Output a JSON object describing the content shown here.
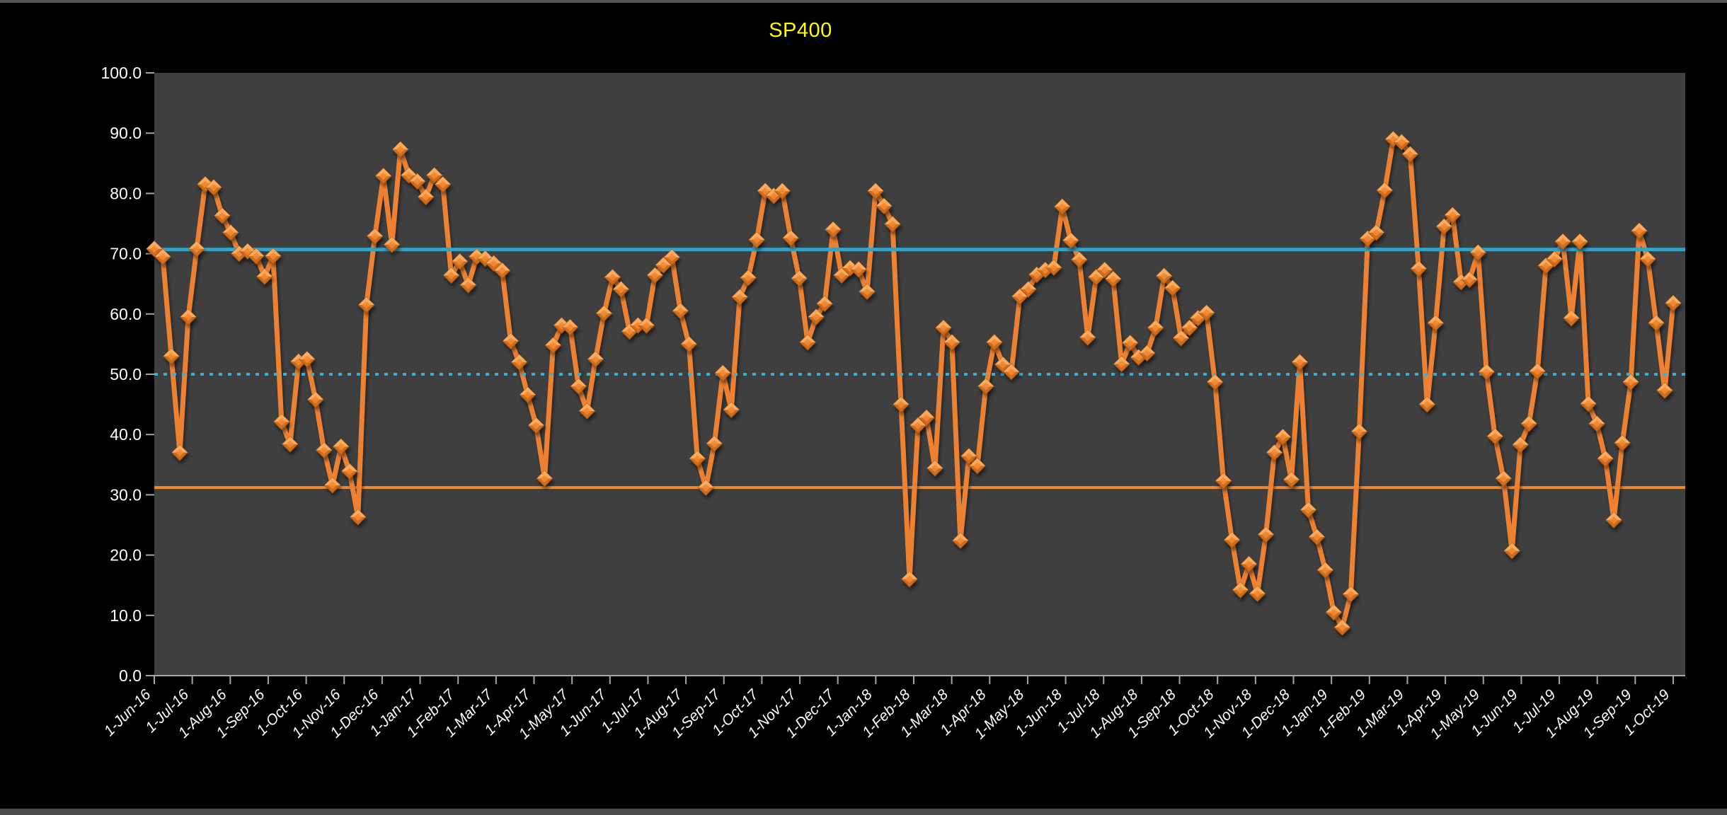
{
  "chart_data": {
    "type": "line",
    "title": "SP400",
    "title_color": "#FFFF00",
    "outer_bg": "#000000",
    "plot_bg": "#3F3F3F",
    "axis_text_color": "#FFFFFF",
    "axis_line_color": "#A6A6A6",
    "grid": "off",
    "legend_position": "none",
    "ylim": [
      0,
      100
    ],
    "y_tick_labels": [
      "0.0",
      "10.0",
      "20.0",
      "30.0",
      "40.0",
      "50.0",
      "60.0",
      "70.0",
      "80.0",
      "90.0",
      "100.0"
    ],
    "x_tick_labels": [
      "1-Jun-16",
      "1-Jul-16",
      "1-Aug-16",
      "1-Sep-16",
      "1-Oct-16",
      "1-Nov-16",
      "1-Dec-16",
      "1-Jan-17",
      "1-Feb-17",
      "1-Mar-17",
      "1-Apr-17",
      "1-May-17",
      "1-Jun-17",
      "1-Jul-17",
      "1-Aug-17",
      "1-Sep-17",
      "1-Oct-17",
      "1-Nov-17",
      "1-Dec-17",
      "1-Jan-18",
      "1-Feb-18",
      "1-Mar-18",
      "1-Apr-18",
      "1-May-18",
      "1-Jun-18",
      "1-Jul-18",
      "1-Aug-18",
      "1-Sep-18",
      "1-Oct-18",
      "1-Nov-18",
      "1-Dec-18",
      "1-Jan-19",
      "1-Feb-19",
      "1-Mar-19",
      "1-Apr-19",
      "1-May-19",
      "1-Jun-19",
      "1-Jul-19",
      "1-Aug-19",
      "1-Sep-19",
      "1-Oct-19"
    ],
    "x_frequency": "weekly",
    "series": [
      {
        "name": "SP400",
        "marker": "diamond",
        "line_color": "#ED8132",
        "marker_fill": "#EF8A33",
        "marker_top_highlight": "#F8AB5E",
        "marker_bottom_shade": "#D06C1C",
        "marker_stroke": "#A85A12",
        "values": [
          70.8,
          69.5,
          53,
          37,
          59.5,
          70.8,
          81.5,
          81,
          76.3,
          73.5,
          70,
          70.4,
          69.6,
          66.2,
          69.6,
          42.1,
          38.4,
          52.1,
          52.5,
          45.8,
          37.4,
          31.6,
          38,
          33.9,
          26.3,
          61.5,
          72.9,
          82.9,
          71.5,
          87.3,
          83,
          82,
          79.4,
          83,
          81.5,
          66.4,
          68.7,
          64.8,
          69.5,
          69.2,
          68.4,
          67.2,
          55.5,
          52,
          46.6,
          41.5,
          32.7,
          54.8,
          58.1,
          57.8,
          48,
          43.9,
          52.5,
          60.1,
          66.1,
          64.1,
          57.1,
          58.1,
          58.1,
          66.4,
          68.1,
          69.4,
          60.5,
          55,
          36,
          31.2,
          38.5,
          50.2,
          44.1,
          62.8,
          66,
          72.3,
          80.4,
          79.6,
          80.4,
          72.6,
          65.9,
          55.3,
          59.5,
          61.7,
          74,
          66.4,
          67.6,
          67.4,
          63.7,
          80.4,
          77.9,
          74.9,
          45,
          16,
          41.5,
          42.8,
          34.4,
          57.7,
          55.3,
          22.4,
          36.4,
          34.8,
          48,
          55.3,
          51.6,
          50.4,
          62.9,
          64.1,
          66.5,
          67.3,
          67.7,
          77.8,
          72.2,
          69,
          56.1,
          66.1,
          67.3,
          65.8,
          51.7,
          55.2,
          52.8,
          53.5,
          57.7,
          66.3,
          64.3,
          56,
          57.7,
          59.3,
          60.2,
          48.7,
          32.3,
          22.5,
          14.2,
          18.5,
          13.6,
          23.4,
          37,
          39.6,
          32.5,
          52,
          27.5,
          23,
          17.5,
          10.5,
          8,
          13.5,
          40.5,
          72.5,
          73.5,
          80.5,
          89,
          88.5,
          86.5,
          67.5,
          45,
          58.5,
          74.5,
          76.4,
          65.3,
          65.7,
          70.2,
          50.4,
          39.7,
          32.7,
          20.7,
          38.3,
          41.8,
          50.5,
          68,
          69.1,
          72,
          59.3,
          72,
          45.1,
          41.8,
          36,
          25.8,
          38.6,
          48.7,
          73.8,
          69.1,
          58.5,
          47.3,
          61.8
        ]
      }
    ],
    "reference_lines": [
      {
        "name": "upper-band-line",
        "value": 70.7,
        "style": "solid",
        "color": "#35A2C6",
        "width": 5
      },
      {
        "name": "mid-dotted-line",
        "value": 50.0,
        "style": "dotted",
        "color": "#3FADCF",
        "width": 4
      },
      {
        "name": "lower-band-line",
        "value": 31.2,
        "style": "solid",
        "color": "#ED8B35",
        "width": 4
      }
    ]
  }
}
